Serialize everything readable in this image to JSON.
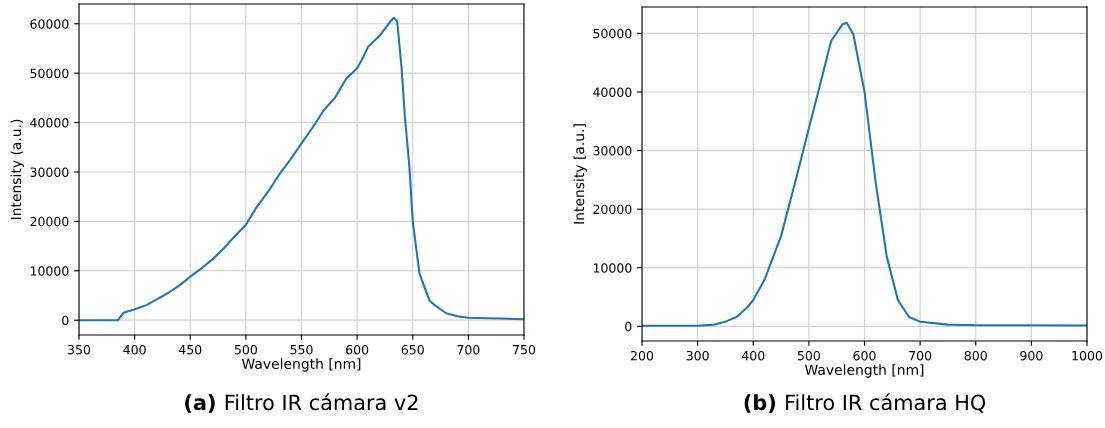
{
  "chart_data": [
    {
      "type": "line",
      "title": "(a) Filtro IR cámara v2",
      "xlabel": "Wavelength [nm]",
      "ylabel": "Intensity (a.u.)",
      "grid": true,
      "xlim": [
        350,
        750
      ],
      "xticks": [
        350,
        400,
        450,
        500,
        550,
        600,
        650,
        700,
        750
      ],
      "ylim": [
        -3000,
        64000
      ],
      "yticks": [
        0,
        10000,
        20000,
        30000,
        40000,
        50000,
        60000
      ],
      "series": [
        {
          "color": "#1f77b4",
          "x": [
            350,
            385,
            390,
            400,
            410,
            420,
            430,
            440,
            450,
            460,
            470,
            480,
            490,
            500,
            510,
            520,
            530,
            540,
            550,
            560,
            570,
            580,
            590,
            600,
            605,
            610,
            620,
            630,
            633,
            636,
            640,
            643,
            647,
            650,
            656,
            660,
            665,
            670,
            680,
            690,
            700,
            750
          ],
          "values": [
            0,
            0,
            1500,
            2200,
            3000,
            4200,
            5500,
            7000,
            8800,
            10500,
            12300,
            14500,
            17000,
            19300,
            23000,
            26000,
            29500,
            32500,
            35800,
            39000,
            42500,
            45000,
            48800,
            51000,
            53000,
            55400,
            57500,
            60500,
            61200,
            60500,
            51000,
            41000,
            31000,
            20000,
            9500,
            7000,
            4000,
            3000,
            1400,
            800,
            500,
            200
          ]
        }
      ]
    },
    {
      "type": "line",
      "title": "(b) Filtro IR cámara HQ",
      "xlabel": "Wavelength [nm]",
      "ylabel": "Intensity [a.u.]",
      "grid": true,
      "xlim": [
        200,
        1000
      ],
      "xticks": [
        200,
        300,
        400,
        500,
        600,
        700,
        800,
        900,
        1000
      ],
      "ylim": [
        -2500,
        54500
      ],
      "yticks": [
        0,
        10000,
        20000,
        30000,
        40000,
        50000
      ],
      "series": [
        {
          "color": "#1f77b4",
          "x": [
            200,
            300,
            330,
            350,
            370,
            390,
            400,
            420,
            450,
            480,
            500,
            520,
            540,
            560,
            568,
            580,
            600,
            620,
            640,
            660,
            680,
            700,
            750,
            800,
            1000
          ],
          "values": [
            100,
            100,
            300,
            800,
            1600,
            3300,
            4500,
            7900,
            15400,
            26300,
            33800,
            41200,
            48700,
            51500,
            51800,
            49800,
            40000,
            24600,
            11900,
            4500,
            1600,
            800,
            300,
            200,
            150
          ]
        }
      ]
    }
  ]
}
